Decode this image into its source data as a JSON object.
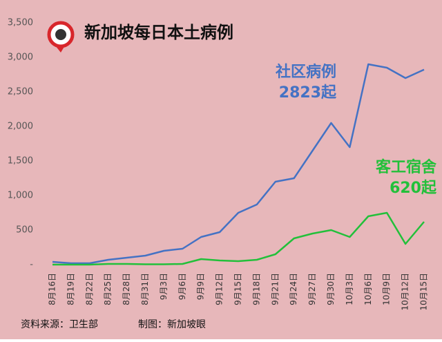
{
  "chart_data": {
    "type": "line",
    "title": "新加坡每日本土病例",
    "categories": [
      "8月16日",
      "8月19日",
      "8月22日",
      "8月25日",
      "8月28日",
      "8月31日",
      "9月3日",
      "9月6日",
      "9月9日",
      "9月12日",
      "9月15日",
      "9月18日",
      "9月21日",
      "9月24日",
      "9月27日",
      "9月30日",
      "10月3日",
      "10月6日",
      "10月9日",
      "10月12日",
      "10月15日"
    ],
    "series": [
      {
        "name": "社区病例",
        "color": "#4472c4",
        "values": [
          40,
          20,
          20,
          70,
          100,
          130,
          200,
          230,
          400,
          470,
          750,
          870,
          1200,
          1250,
          1650,
          2050,
          1700,
          2900,
          2850,
          2700,
          2823
        ],
        "value_labels": [
          null,
          null,
          null,
          null,
          null,
          null,
          null,
          null,
          null,
          null,
          null,
          null,
          null,
          null,
          null,
          null,
          null,
          null,
          null,
          null,
          "2823起"
        ]
      },
      {
        "name": "客工宿舍",
        "color": "#22c03a",
        "values": [
          0,
          0,
          0,
          10,
          10,
          5,
          5,
          10,
          80,
          60,
          50,
          70,
          150,
          380,
          450,
          500,
          400,
          700,
          750,
          300,
          620
        ],
        "value_labels": [
          null,
          null,
          null,
          null,
          null,
          null,
          null,
          null,
          null,
          null,
          null,
          null,
          null,
          null,
          null,
          null,
          null,
          null,
          null,
          null,
          "620起"
        ]
      }
    ],
    "ylim": [
      0,
      3500
    ],
    "yticks": [
      {
        "value": 0,
        "label": "-"
      },
      500,
      {
        "value": 1000,
        "label": "1,000"
      },
      {
        "value": 1500,
        "label": "1,500"
      },
      {
        "value": 2000,
        "label": "2,000"
      },
      {
        "value": 2500,
        "label": "2,500"
      },
      {
        "value": 3000,
        "label": "3,000"
      },
      {
        "value": 3500,
        "label": "3,500"
      }
    ],
    "grid": false,
    "source": "资料来源：卫生部",
    "credit": "制图：新加坡眼"
  }
}
